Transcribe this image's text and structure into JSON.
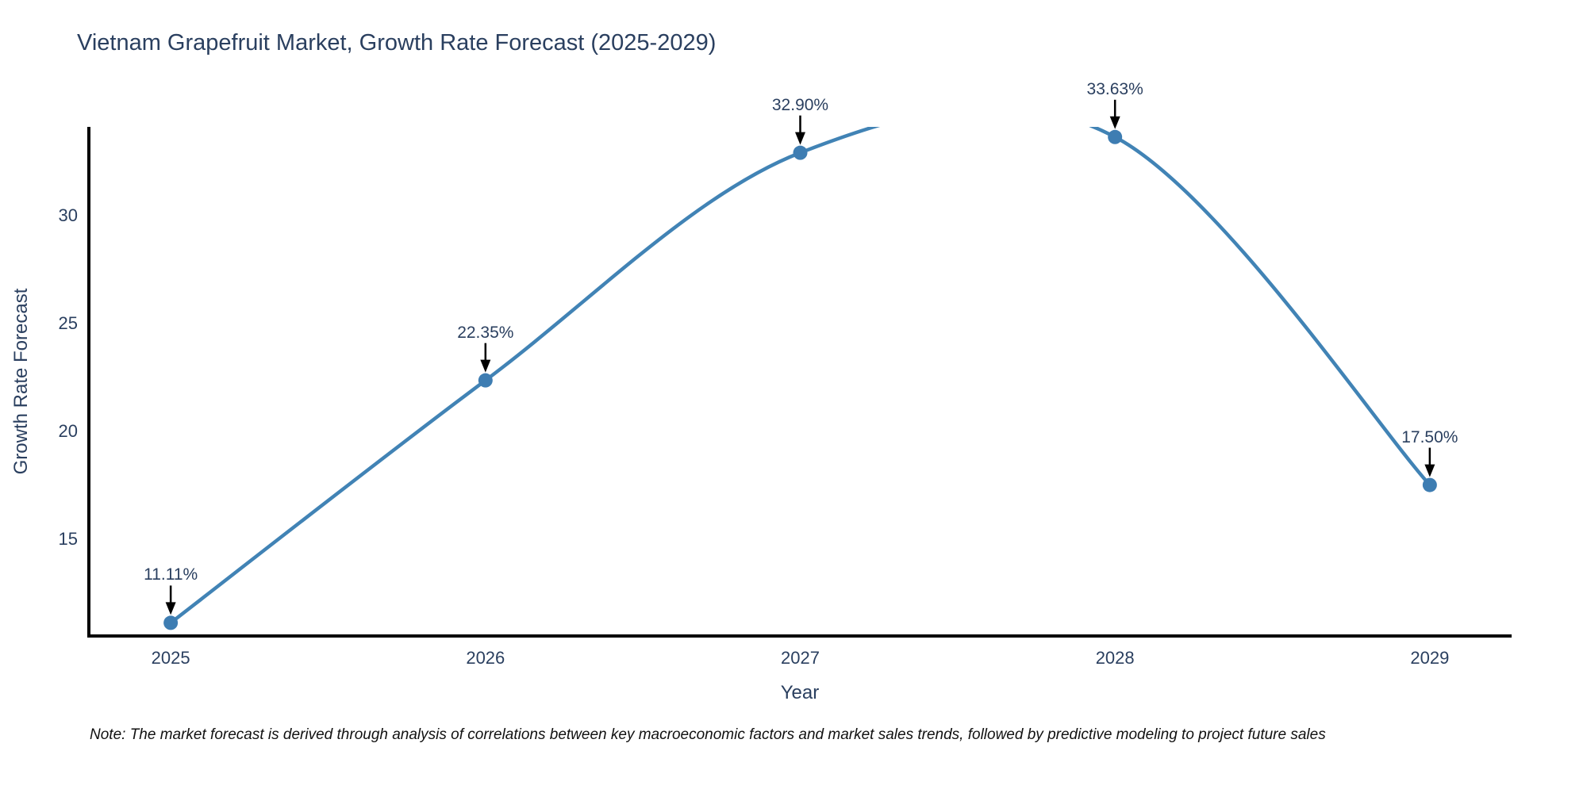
{
  "chart_data": {
    "type": "line",
    "title": "Vietnam Grapefruit Market, Growth Rate Forecast (2025-2029)",
    "xlabel": "Year",
    "ylabel": "Growth Rate Forecast",
    "x": [
      2025,
      2026,
      2027,
      2028,
      2029
    ],
    "series": [
      {
        "name": "Growth Rate Forecast",
        "values": [
          11.11,
          22.35,
          32.9,
          33.63,
          17.5
        ]
      }
    ],
    "point_labels": [
      "11.11%",
      "22.35%",
      "32.90%",
      "33.63%",
      "17.50%"
    ],
    "xticks": [
      "2025",
      "2026",
      "2027",
      "2028",
      "2029"
    ],
    "yticks": [
      "15",
      "20",
      "25",
      "30"
    ],
    "ytick_values": [
      15,
      20,
      25,
      30
    ],
    "xlim": [
      2024.74,
      2029.26
    ],
    "ylim": [
      10.5,
      34.1
    ],
    "line_shape": "spline",
    "grid": false,
    "legend_position": "none",
    "colors": {
      "line": "#4183b5",
      "marker": "#3e7db2",
      "axis": "#000000",
      "text": "#2a3f5f",
      "arrow": "#000000"
    }
  },
  "note": "Note: The market forecast is derived through analysis of correlations between key macroeconomic factors and market sales trends, followed by predictive modeling to project future sales"
}
